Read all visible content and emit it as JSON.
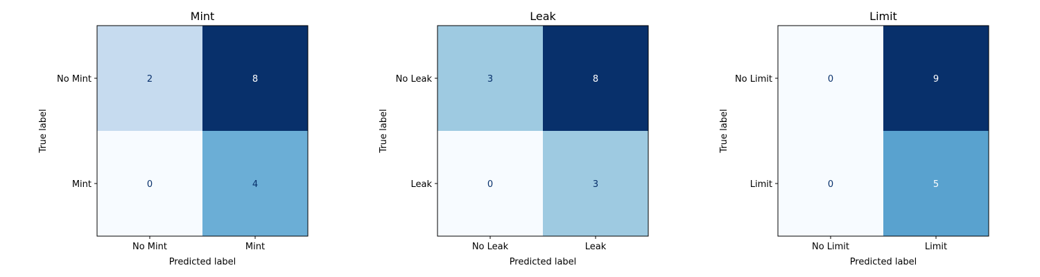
{
  "chart_data": [
    {
      "type": "heatmap",
      "title": "Mint",
      "xlabel": "Predicted label",
      "ylabel": "True label",
      "x_tick_labels": [
        "No Mint",
        "Mint"
      ],
      "y_tick_labels": [
        "No Mint",
        "Mint"
      ],
      "matrix": [
        [
          2,
          8
        ],
        [
          0,
          4
        ]
      ],
      "colormap": "Blues",
      "grid": false,
      "colorbar": false
    },
    {
      "type": "heatmap",
      "title": "Leak",
      "xlabel": "Predicted label",
      "ylabel": "True label",
      "x_tick_labels": [
        "No Leak",
        "Leak"
      ],
      "y_tick_labels": [
        "No Leak",
        "Leak"
      ],
      "matrix": [
        [
          3,
          8
        ],
        [
          0,
          3
        ]
      ],
      "colormap": "Blues",
      "grid": false,
      "colorbar": false
    },
    {
      "type": "heatmap",
      "title": "Limit",
      "xlabel": "Predicted label",
      "ylabel": "True label",
      "x_tick_labels": [
        "No Limit",
        "Limit"
      ],
      "y_tick_labels": [
        "No Limit",
        "Limit"
      ],
      "matrix": [
        [
          0,
          9
        ],
        [
          0,
          5
        ]
      ],
      "colormap": "Blues",
      "grid": false,
      "colorbar": false
    }
  ]
}
